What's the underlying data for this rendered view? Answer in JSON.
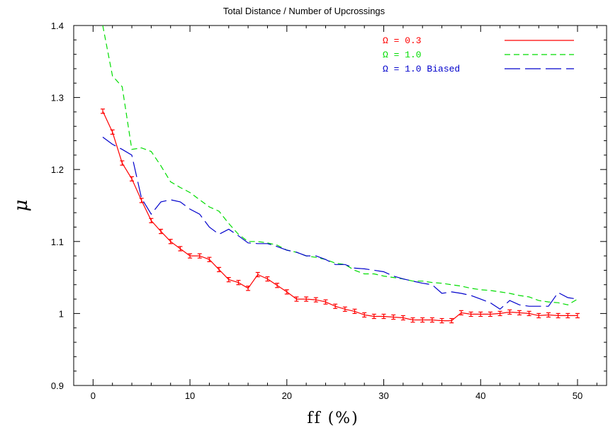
{
  "chart_data": {
    "type": "line",
    "title": "Total Distance / Number of Upcrossings",
    "xlabel": "ff (%)",
    "ylabel": "μ",
    "xlim": [
      -2,
      53
    ],
    "ylim": [
      0.9,
      1.4
    ],
    "xticks": [
      0,
      10,
      20,
      30,
      40,
      50
    ],
    "xtick_labels": [
      "0",
      "10",
      "20",
      "30",
      "40",
      "50"
    ],
    "yticks": [
      0.9,
      1.0,
      1.1,
      1.2,
      1.3,
      1.4
    ],
    "ytick_labels": [
      "0.9",
      "1",
      "1.1",
      "1.2",
      "1.3",
      "1.4"
    ],
    "legend_position": "top-right",
    "series": [
      {
        "name": "Ω = 0.3",
        "color": "#ff0000",
        "style": "solid",
        "error_bars": true,
        "error": 0.003,
        "x": [
          1,
          2,
          3,
          4,
          5,
          6,
          7,
          8,
          9,
          10,
          11,
          12,
          13,
          14,
          15,
          16,
          17,
          18,
          19,
          20,
          21,
          22,
          23,
          24,
          25,
          26,
          27,
          28,
          29,
          30,
          31,
          32,
          33,
          34,
          35,
          36,
          37,
          38,
          39,
          40,
          41,
          42,
          43,
          44,
          45,
          46,
          47,
          48,
          49,
          50
        ],
        "y": [
          1.281,
          1.252,
          1.209,
          1.187,
          1.157,
          1.129,
          1.114,
          1.1,
          1.09,
          1.08,
          1.08,
          1.075,
          1.061,
          1.047,
          1.043,
          1.035,
          1.054,
          1.048,
          1.039,
          1.03,
          1.02,
          1.02,
          1.019,
          1.016,
          1.01,
          1.006,
          1.003,
          0.998,
          0.996,
          0.996,
          0.995,
          0.994,
          0.991,
          0.991,
          0.991,
          0.99,
          0.99,
          1.001,
          0.999,
          0.999,
          0.999,
          1.0,
          1.002,
          1.001,
          1.0,
          0.997,
          0.998,
          0.997,
          0.997,
          0.997
        ]
      },
      {
        "name": "Ω = 1.0",
        "color": "#00dd00",
        "style": "dashed",
        "x": [
          1,
          2,
          3,
          4,
          5,
          6,
          7,
          8,
          9,
          10,
          11,
          12,
          13,
          14,
          15,
          16,
          17,
          18,
          19,
          20,
          21,
          22,
          23,
          24,
          25,
          26,
          27,
          28,
          29,
          30,
          31,
          32,
          33,
          34,
          35,
          36,
          37,
          38,
          39,
          40,
          41,
          42,
          43,
          44,
          45,
          46,
          47,
          48,
          49,
          50
        ],
        "y": [
          1.4,
          1.33,
          1.315,
          1.228,
          1.23,
          1.225,
          1.205,
          1.183,
          1.175,
          1.168,
          1.158,
          1.148,
          1.142,
          1.125,
          1.11,
          1.1,
          1.1,
          1.098,
          1.095,
          1.088,
          1.085,
          1.08,
          1.078,
          1.075,
          1.07,
          1.068,
          1.06,
          1.055,
          1.055,
          1.052,
          1.05,
          1.048,
          1.045,
          1.045,
          1.043,
          1.042,
          1.04,
          1.038,
          1.035,
          1.033,
          1.032,
          1.03,
          1.028,
          1.025,
          1.023,
          1.018,
          1.016,
          1.015,
          1.012,
          1.02
        ]
      },
      {
        "name": "Ω = 1.0 Biased",
        "color": "#0000cc",
        "style": "longdash",
        "x": [
          1,
          2,
          3,
          4,
          5,
          6,
          7,
          8,
          9,
          10,
          11,
          12,
          13,
          14,
          15,
          16,
          17,
          18,
          19,
          20,
          21,
          22,
          23,
          24,
          25,
          26,
          27,
          28,
          29,
          30,
          31,
          32,
          33,
          34,
          35,
          36,
          37,
          38,
          39,
          40,
          41,
          42,
          43,
          44,
          45,
          46,
          47,
          48,
          49,
          50
        ],
        "y": [
          1.245,
          1.235,
          1.228,
          1.22,
          1.16,
          1.138,
          1.155,
          1.158,
          1.155,
          1.145,
          1.138,
          1.12,
          1.11,
          1.117,
          1.108,
          1.098,
          1.097,
          1.097,
          1.093,
          1.088,
          1.085,
          1.08,
          1.08,
          1.075,
          1.068,
          1.068,
          1.063,
          1.062,
          1.06,
          1.058,
          1.052,
          1.048,
          1.045,
          1.042,
          1.04,
          1.028,
          1.03,
          1.028,
          1.025,
          1.02,
          1.015,
          1.006,
          1.018,
          1.012,
          1.01,
          1.01,
          1.01,
          1.029,
          1.022,
          1.02
        ]
      }
    ]
  }
}
